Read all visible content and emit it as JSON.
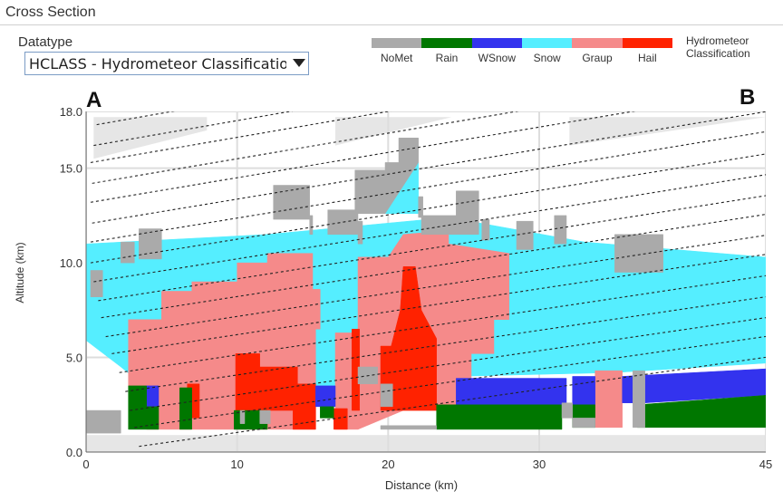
{
  "panel": {
    "title": "Cross Section"
  },
  "datatype": {
    "label": "Datatype",
    "selected": "HCLASS - Hydrometeor Classification"
  },
  "legend": {
    "title_line1": "Hydrometeor",
    "title_line2": "Classification",
    "items": [
      {
        "name": "NoMet",
        "color": "#aaaaaa"
      },
      {
        "name": "Rain",
        "color": "#007700"
      },
      {
        "name": "WSnow",
        "color": "#3333ee"
      },
      {
        "name": "Snow",
        "color": "#55eeff"
      },
      {
        "name": "Graup",
        "color": "#f58a8a"
      },
      {
        "name": "Hail",
        "color": "#ff2200"
      }
    ]
  },
  "endpoints": {
    "start": "A",
    "end": "B"
  },
  "chart_data": {
    "type": "heatmap",
    "xlabel": "Distance (km)",
    "ylabel": "Altitude (km)",
    "xlim": [
      0,
      45
    ],
    "ylim": [
      0,
      18
    ],
    "xticks": [
      0,
      10,
      20,
      30,
      45
    ],
    "xtick_labels": [
      "0",
      "10",
      "20",
      "30",
      "45"
    ],
    "yticks": [
      0,
      5,
      10,
      15,
      18
    ],
    "ytick_labels": [
      "0.0",
      "5.0",
      "10.0",
      "15.0",
      "18.0"
    ],
    "grid": true,
    "colors": {
      "NoMet": "#aaaaaa",
      "Rain": "#007700",
      "WSnow": "#3333ee",
      "Snow": "#55eeff",
      "Graup": "#f58a8a",
      "Hail": "#ff2200"
    },
    "regions": [
      {
        "cls": "Snow",
        "points": [
          [
            0,
            11
          ],
          [
            12,
            11.5
          ],
          [
            24,
            12.4
          ],
          [
            33,
            11.1
          ],
          [
            45,
            10.3
          ],
          [
            45,
            4.7
          ],
          [
            35,
            4.2
          ],
          [
            24.5,
            4
          ],
          [
            21,
            3.5
          ],
          [
            15,
            3.5
          ],
          [
            11,
            3.6
          ],
          [
            4,
            3.4
          ],
          [
            2.3,
            4.5
          ],
          [
            0,
            5.9
          ]
        ]
      },
      {
        "cls": "Snow",
        "points": [
          [
            19.8,
            12.6
          ],
          [
            22,
            12.6
          ],
          [
            22,
            15.3
          ],
          [
            20.7,
            15.3
          ]
        ]
      },
      {
        "cls": "Graup",
        "points": [
          [
            2.8,
            3.5
          ],
          [
            2.8,
            7
          ],
          [
            5,
            7
          ],
          [
            5,
            8.5
          ],
          [
            7,
            8.5
          ],
          [
            7,
            9
          ],
          [
            10,
            9
          ],
          [
            10,
            10
          ],
          [
            12,
            10
          ],
          [
            12,
            10.5
          ],
          [
            15,
            10.5
          ],
          [
            15,
            8.6
          ],
          [
            15.5,
            8.6
          ],
          [
            15.5,
            6.5
          ],
          [
            15.2,
            6.5
          ],
          [
            15.2,
            1.2
          ],
          [
            4,
            1.2
          ]
        ]
      },
      {
        "cls": "Graup",
        "points": [
          [
            16.5,
            1.2
          ],
          [
            16.5,
            6.3
          ],
          [
            18,
            6.3
          ],
          [
            18,
            10.3
          ],
          [
            20,
            10.3
          ],
          [
            21,
            11.5
          ],
          [
            24,
            11.7
          ],
          [
            24,
            11
          ],
          [
            28,
            10.5
          ],
          [
            28,
            7
          ],
          [
            27,
            7
          ],
          [
            27,
            5.2
          ],
          [
            25.5,
            5.2
          ],
          [
            25.5,
            2.2
          ],
          [
            21,
            2.2
          ],
          [
            18,
            1.2
          ]
        ]
      },
      {
        "cls": "Graup",
        "points": [
          [
            33.7,
            4.3
          ],
          [
            35.5,
            4.3
          ],
          [
            35.5,
            1.3
          ],
          [
            33.7,
            1.3
          ]
        ]
      },
      {
        "cls": "Hail",
        "points": [
          [
            6.7,
            3.6
          ],
          [
            7.5,
            3.6
          ],
          [
            7.5,
            1.8
          ],
          [
            6.7,
            1.8
          ]
        ]
      },
      {
        "cls": "Hail",
        "points": [
          [
            9.9,
            5.2
          ],
          [
            11.5,
            5.2
          ],
          [
            11.5,
            4.5
          ],
          [
            14,
            4.5
          ],
          [
            14,
            3.6
          ],
          [
            15.2,
            3.6
          ],
          [
            15.2,
            1.2
          ],
          [
            13.7,
            1.2
          ],
          [
            13.7,
            2.2
          ],
          [
            9.9,
            2.2
          ]
        ]
      },
      {
        "cls": "Hail",
        "points": [
          [
            17.6,
            2.2
          ],
          [
            17.6,
            6.5
          ],
          [
            18.1,
            6.5
          ],
          [
            18.1,
            2.2
          ]
        ]
      },
      {
        "cls": "Hail",
        "points": [
          [
            19.5,
            2.2
          ],
          [
            19.5,
            5.6
          ],
          [
            20.2,
            5.6
          ],
          [
            20.8,
            7.5
          ],
          [
            21,
            9.8
          ],
          [
            21.8,
            9.8
          ],
          [
            22.2,
            7.5
          ],
          [
            23.2,
            6
          ],
          [
            23.2,
            2.2
          ]
        ]
      },
      {
        "cls": "Hail",
        "points": [
          [
            16.4,
            1.2
          ],
          [
            16.4,
            2.3
          ],
          [
            17.3,
            2.3
          ],
          [
            17.3,
            1.2
          ]
        ]
      },
      {
        "cls": "WSnow",
        "points": [
          [
            15.2,
            3.5
          ],
          [
            16.5,
            3.5
          ],
          [
            16.5,
            2.4
          ],
          [
            15.2,
            2.4
          ]
        ]
      },
      {
        "cls": "WSnow",
        "points": [
          [
            24.5,
            3.9
          ],
          [
            31.8,
            3.9
          ],
          [
            31.8,
            2.5
          ],
          [
            24.5,
            2.5
          ]
        ]
      },
      {
        "cls": "WSnow",
        "points": [
          [
            32.2,
            4.0
          ],
          [
            33.7,
            4.0
          ],
          [
            33.7,
            2.5
          ],
          [
            32.2,
            2.5
          ]
        ]
      },
      {
        "cls": "WSnow",
        "points": [
          [
            35.5,
            4.0
          ],
          [
            45,
            4.4
          ],
          [
            45,
            3.0
          ],
          [
            37,
            2.6
          ],
          [
            35.5,
            2.6
          ]
        ]
      },
      {
        "cls": "WSnow",
        "points": [
          [
            4,
            3.5
          ],
          [
            4.8,
            3.5
          ],
          [
            4.8,
            2.4
          ],
          [
            4,
            2.4
          ]
        ]
      },
      {
        "cls": "Rain",
        "points": [
          [
            2.8,
            1.2
          ],
          [
            2.8,
            3.5
          ],
          [
            4,
            3.5
          ],
          [
            4,
            2.4
          ],
          [
            4.8,
            2.4
          ],
          [
            4.8,
            1.2
          ]
        ]
      },
      {
        "cls": "Rain",
        "points": [
          [
            6.2,
            1.2
          ],
          [
            6.2,
            3.4
          ],
          [
            7,
            3.4
          ],
          [
            7,
            1.2
          ]
        ]
      },
      {
        "cls": "Rain",
        "points": [
          [
            9.8,
            1.2
          ],
          [
            9.8,
            2.2
          ],
          [
            12,
            2.2
          ],
          [
            12,
            1.2
          ]
        ]
      },
      {
        "cls": "Rain",
        "points": [
          [
            15.5,
            1.8
          ],
          [
            16.4,
            1.8
          ],
          [
            16.4,
            2.4
          ],
          [
            15.5,
            2.4
          ]
        ]
      },
      {
        "cls": "Rain",
        "points": [
          [
            23.2,
            1.2
          ],
          [
            23.2,
            2.5
          ],
          [
            31.5,
            2.5
          ],
          [
            31.5,
            1.2
          ]
        ]
      },
      {
        "cls": "Rain",
        "points": [
          [
            32.2,
            1.3
          ],
          [
            32.2,
            2.5
          ],
          [
            33.7,
            2.5
          ],
          [
            33.7,
            1.3
          ]
        ]
      },
      {
        "cls": "Rain",
        "points": [
          [
            36.5,
            1.3
          ],
          [
            36.5,
            2.5
          ],
          [
            45,
            3.0
          ],
          [
            45,
            1.3
          ]
        ]
      },
      {
        "cls": "NoMet",
        "points": [
          [
            0,
            1.0
          ],
          [
            0,
            2.2
          ],
          [
            2.3,
            2.2
          ],
          [
            2.3,
            1.0
          ]
        ]
      },
      {
        "cls": "NoMet",
        "points": [
          [
            0.3,
            8.2
          ],
          [
            0.3,
            9.6
          ],
          [
            1.1,
            9.6
          ],
          [
            1.1,
            8.2
          ]
        ]
      },
      {
        "cls": "NoMet",
        "points": [
          [
            2.3,
            10.0
          ],
          [
            2.3,
            11.1
          ],
          [
            3.2,
            11.1
          ],
          [
            3.2,
            10.0
          ]
        ]
      },
      {
        "cls": "NoMet",
        "points": [
          [
            3.5,
            10.2
          ],
          [
            3.5,
            11.8
          ],
          [
            5,
            11.8
          ],
          [
            5,
            10.2
          ]
        ]
      },
      {
        "cls": "NoMet",
        "points": [
          [
            12.4,
            13.5
          ],
          [
            12.4,
            14.1
          ],
          [
            14.8,
            14.1
          ],
          [
            14.8,
            12.3
          ],
          [
            12.4,
            12.3
          ]
        ]
      },
      {
        "cls": "NoMet",
        "points": [
          [
            14.8,
            11.5
          ],
          [
            14.8,
            12.5
          ],
          [
            15,
            12.5
          ],
          [
            15,
            11.5
          ]
        ]
      },
      {
        "cls": "NoMet",
        "points": [
          [
            16,
            12.2
          ],
          [
            16,
            12.8
          ],
          [
            18,
            12.8
          ],
          [
            18,
            11.5
          ],
          [
            16,
            11.5
          ]
        ]
      },
      {
        "cls": "NoMet",
        "points": [
          [
            17.8,
            12.6
          ],
          [
            17.8,
            14.9
          ],
          [
            19.8,
            14.9
          ],
          [
            19.8,
            15.3
          ],
          [
            20.7,
            15.3
          ],
          [
            20.7,
            16.6
          ],
          [
            22,
            16.6
          ],
          [
            22,
            15.3
          ],
          [
            19.8,
            12.6
          ]
        ]
      },
      {
        "cls": "NoMet",
        "points": [
          [
            18,
            11
          ],
          [
            18,
            12.2
          ],
          [
            18.3,
            12.2
          ],
          [
            18.3,
            11
          ]
        ]
      },
      {
        "cls": "NoMet",
        "points": [
          [
            22,
            12.4
          ],
          [
            22,
            13.5
          ],
          [
            22.3,
            13.5
          ],
          [
            22.3,
            12.4
          ]
        ]
      },
      {
        "cls": "NoMet",
        "points": [
          [
            22.2,
            11.5
          ],
          [
            22.2,
            12.5
          ],
          [
            24.5,
            12.5
          ],
          [
            24.5,
            11.5
          ]
        ]
      },
      {
        "cls": "NoMet",
        "points": [
          [
            24.5,
            11.5
          ],
          [
            24.5,
            13.8
          ],
          [
            26,
            13.8
          ],
          [
            26,
            11.5
          ]
        ]
      },
      {
        "cls": "NoMet",
        "points": [
          [
            26.2,
            11.2
          ],
          [
            26.2,
            12.3
          ],
          [
            26.7,
            12.3
          ],
          [
            26.7,
            11.2
          ]
        ]
      },
      {
        "cls": "NoMet",
        "points": [
          [
            28.5,
            10.7
          ],
          [
            28.5,
            12.2
          ],
          [
            29.6,
            12.2
          ],
          [
            29.6,
            10.7
          ]
        ]
      },
      {
        "cls": "NoMet",
        "points": [
          [
            31,
            11
          ],
          [
            31,
            12.5
          ],
          [
            31.8,
            12.5
          ],
          [
            31.8,
            11
          ]
        ]
      },
      {
        "cls": "NoMet",
        "points": [
          [
            35,
            9.5
          ],
          [
            35,
            11.5
          ],
          [
            38.2,
            11.5
          ],
          [
            38.2,
            9.5
          ]
        ]
      },
      {
        "cls": "NoMet",
        "points": [
          [
            19.5,
            2.4
          ],
          [
            19.5,
            3.6
          ],
          [
            20.3,
            3.6
          ],
          [
            20.3,
            2.4
          ]
        ]
      },
      {
        "cls": "NoMet",
        "points": [
          [
            32.2,
            1.3
          ],
          [
            32.2,
            1.8
          ],
          [
            33.7,
            1.8
          ],
          [
            33.7,
            1.3
          ]
        ]
      },
      {
        "cls": "NoMet",
        "points": [
          [
            36.2,
            1.3
          ],
          [
            36.2,
            4.3
          ],
          [
            37,
            4.3
          ],
          [
            37,
            1.3
          ]
        ]
      },
      {
        "cls": "NoMet",
        "points": [
          [
            31.5,
            1.8
          ],
          [
            31.5,
            2.6
          ],
          [
            32.2,
            2.6
          ],
          [
            32.2,
            1.8
          ]
        ]
      },
      {
        "cls": "NoMet",
        "points": [
          [
            10.2,
            1.5
          ],
          [
            10.2,
            2.2
          ],
          [
            10.5,
            2.2
          ],
          [
            10.5,
            1.5
          ]
        ]
      },
      {
        "cls": "NoMet",
        "points": [
          [
            11.5,
            1.5
          ],
          [
            11.5,
            2.2
          ],
          [
            12.2,
            2.2
          ],
          [
            12.2,
            1.5
          ]
        ]
      },
      {
        "cls": "NoMet",
        "points": [
          [
            18,
            3.6
          ],
          [
            18,
            4.5
          ],
          [
            19.3,
            4.5
          ],
          [
            19.3,
            3.6
          ]
        ]
      },
      {
        "cls": "NoMet",
        "points": [
          [
            19.5,
            1.2
          ],
          [
            19.5,
            1.4
          ],
          [
            23.2,
            1.4
          ],
          [
            23.2,
            1.2
          ]
        ]
      }
    ],
    "beam_lines": [
      [
        0.7,
        17.3
      ],
      [
        0.5,
        16.2
      ],
      [
        0.3,
        15.3
      ],
      [
        0.4,
        14.2
      ],
      [
        0.3,
        13.2
      ],
      [
        0.4,
        12.1
      ],
      [
        0.3,
        11.1
      ],
      [
        0.3,
        10.0
      ],
      [
        0.5,
        9.0
      ],
      [
        0.8,
        8.0
      ],
      [
        1.0,
        7.1
      ],
      [
        1.3,
        6.1
      ],
      [
        1.7,
        5.2
      ],
      [
        2.2,
        4.2
      ],
      [
        2.6,
        3.2
      ],
      [
        2.9,
        2.2
      ],
      [
        3.2,
        1.3
      ],
      [
        3.5,
        0.3
      ]
    ],
    "beam_slope": 0.113,
    "blocked": [
      {
        "x": [
          0.5,
          8.0
        ],
        "top": 17.7,
        "bot": [
          15.5,
          17.0
        ]
      },
      {
        "x": [
          16.5,
          24.2
        ],
        "top": 17.7,
        "bot": [
          16.2,
          17.7
        ]
      },
      {
        "x": [
          32.0,
          45
        ],
        "top": 17.7,
        "bot": [
          16.2,
          17.7
        ]
      }
    ]
  }
}
